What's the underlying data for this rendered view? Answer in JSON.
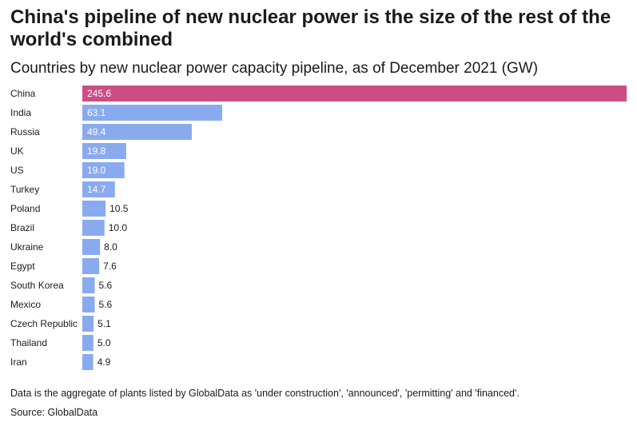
{
  "title": "China's pipeline of new nuclear power is the size of the rest of the world's combined",
  "subtitle": "Countries by new nuclear power capacity pipeline, as of December 2021 (GW)",
  "note": "Data is the aggregate of plants listed by GlobalData as 'under construction', 'announced', 'permitting' and 'financed'.",
  "source": "Source: GlobalData",
  "colors": {
    "highlight": "#cc4d84",
    "bar": "#8aaaf0",
    "label_inside": "#ffffff",
    "label_outside": "#1a1a1a"
  },
  "chart_data": {
    "type": "bar",
    "orientation": "horizontal",
    "categories": [
      "China",
      "India",
      "Russia",
      "UK",
      "US",
      "Turkey",
      "Poland",
      "Brazil",
      "Ukraine",
      "Egypt",
      "South Korea",
      "Mexico",
      "Czech Republic",
      "Thailand",
      "Iran"
    ],
    "values": [
      245.6,
      63.1,
      49.4,
      19.8,
      19.0,
      14.7,
      10.5,
      10.0,
      8.0,
      7.6,
      5.6,
      5.6,
      5.1,
      5.0,
      4.9
    ],
    "value_labels": [
      "245.6",
      "63.1",
      "49.4",
      "19.8",
      "19.0",
      "14.7",
      "10.5",
      "10.0",
      "8.0",
      "7.6",
      "5.6",
      "5.6",
      "5.1",
      "5.0",
      "4.9"
    ],
    "highlighted": [
      "China"
    ],
    "xlim": [
      0,
      245.6
    ],
    "grid": false,
    "legend": "none"
  }
}
